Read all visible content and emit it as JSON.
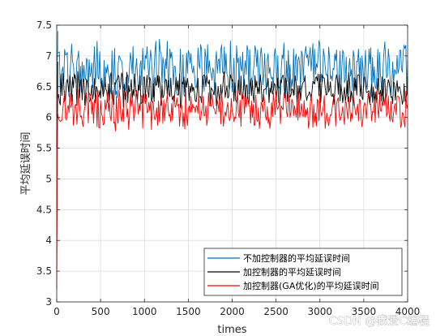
{
  "chart_data": {
    "type": "line",
    "xlabel": "times",
    "ylabel": "平均延误时间",
    "xlim": [
      0,
      4000
    ],
    "ylim": [
      3,
      7.5
    ],
    "xticks": [
      0,
      500,
      1000,
      1500,
      2000,
      2500,
      3000,
      3500,
      4000
    ],
    "yticks": [
      3,
      3.5,
      4,
      4.5,
      5,
      5.5,
      6,
      6.5,
      7,
      7.5
    ],
    "grid": true,
    "legend_position": "bottom-right",
    "series": [
      {
        "name": "不加控制器的平均延误时间",
        "color": "#0072bd",
        "start": 6.0,
        "peak": 7.4,
        "mean": 6.78,
        "amplitude": 0.42,
        "noise": 0.16
      },
      {
        "name": "加控制器的平均延误时间",
        "color": "#000000",
        "start": 5.5,
        "peak": 6.9,
        "mean": 6.46,
        "amplitude": 0.26,
        "noise": 0.11
      },
      {
        "name": "加控制器(GA优化)的平均延误时间",
        "color": "#ff0000",
        "start": 3.2,
        "peak": 6.45,
        "mean": 6.13,
        "amplitude": 0.3,
        "noise": 0.12
      }
    ]
  },
  "watermark": "CSDN @我爱C编程"
}
